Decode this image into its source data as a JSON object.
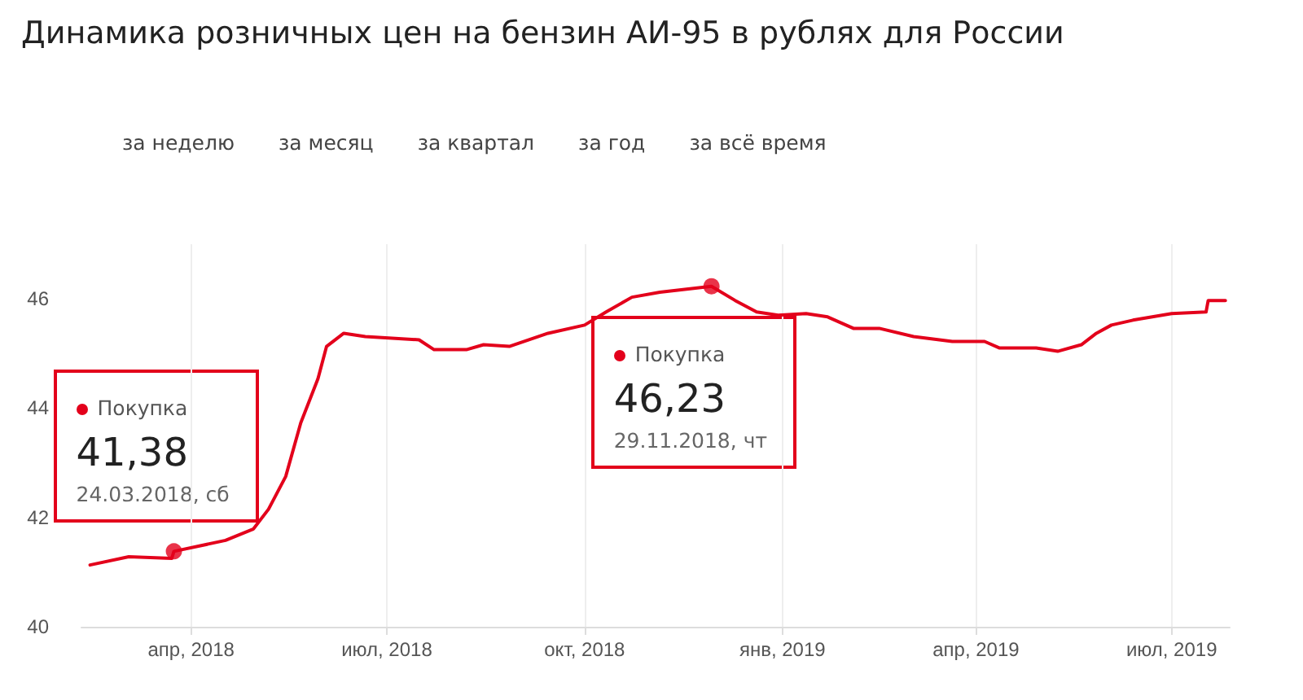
{
  "chart_data": {
    "type": "line",
    "title": "Динамика розничных цен на бензин АИ-95 в рублях для России",
    "x": [
      "2018-02-13",
      "2018-03-03",
      "2018-03-23",
      "2018-03-24",
      "2018-04-17",
      "2018-04-30",
      "2018-05-07",
      "2018-05-15",
      "2018-05-22",
      "2018-05-30",
      "2018-06-03",
      "2018-06-11",
      "2018-06-21",
      "2018-07-16",
      "2018-07-23",
      "2018-08-07",
      "2018-08-15",
      "2018-08-27",
      "2018-09-14",
      "2018-10-01",
      "2018-10-11",
      "2018-10-23",
      "2018-11-05",
      "2018-11-29",
      "2018-12-10",
      "2018-12-20",
      "2018-12-30",
      "2019-01-12",
      "2019-01-22",
      "2019-02-03",
      "2019-02-15",
      "2019-03-03",
      "2019-03-21",
      "2019-04-05",
      "2019-04-12",
      "2019-04-29",
      "2019-05-09",
      "2019-05-20",
      "2019-05-27",
      "2019-06-03",
      "2019-06-13",
      "2019-07-01",
      "2019-07-17",
      "2019-07-18",
      "2019-07-26"
    ],
    "series": [
      {
        "color": "#e3001b",
        "values": [
          41.13,
          41.28,
          41.25,
          41.38,
          41.58,
          41.79,
          42.15,
          42.75,
          43.73,
          44.54,
          45.13,
          45.37,
          45.31,
          45.25,
          45.07,
          45.07,
          45.16,
          45.13,
          45.37,
          45.52,
          45.76,
          46.03,
          46.12,
          46.23,
          45.97,
          45.76,
          45.7,
          45.73,
          45.67,
          45.46,
          45.46,
          45.31,
          45.22,
          45.22,
          45.1,
          45.1,
          45.04,
          45.16,
          45.37,
          45.52,
          45.61,
          45.73,
          45.76,
          45.97,
          45.97
        ]
      },
      {
        "type": "scatter",
        "marker": "circle",
        "color": "#e3001b",
        "x": [
          "2018-03-24",
          "2018-11-29"
        ],
        "values": [
          41.38,
          46.23
        ]
      }
    ],
    "xlim": [
      "2018-02-09",
      "2019-07-28"
    ],
    "xticks": [
      {
        "value": "2018-04-01",
        "label": "апр, 2018"
      },
      {
        "value": "2018-07-01",
        "label": "июл, 2018"
      },
      {
        "value": "2018-10-01",
        "label": "окт, 2018"
      },
      {
        "value": "2019-01-01",
        "label": "янв, 2019"
      },
      {
        "value": "2019-04-01",
        "label": "апр, 2019"
      },
      {
        "value": "2019-07-01",
        "label": "июл, 2019"
      }
    ],
    "ylim": [
      40,
      47
    ],
    "yticks": [
      40,
      42,
      44,
      46
    ],
    "grid": "x",
    "marker": "none",
    "line_style": "solid",
    "annotations": [
      "за неделю",
      "за месяц",
      "за квартал",
      "за год",
      "за всё время",
      "Покупка",
      "41,38",
      "24.03.2018, сб",
      "Покупка",
      "46,23",
      "29.11.2018, чт"
    ]
  }
}
